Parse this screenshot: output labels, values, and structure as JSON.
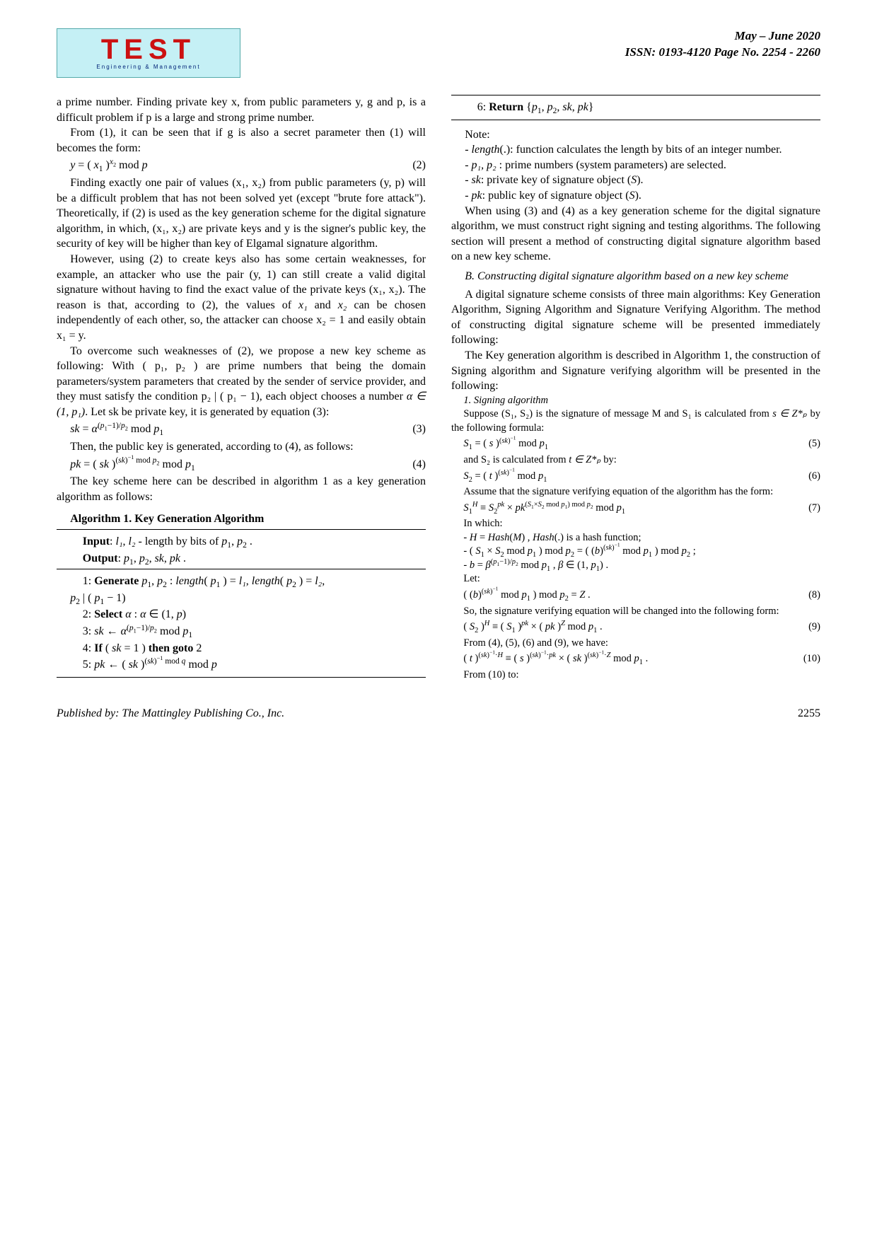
{
  "header": {
    "logo_main": "TEST",
    "logo_sub": "Engineering & Management",
    "date": "May – June 2020",
    "issn": "ISSN: 0193-4120 Page No. 2254 - 2260"
  },
  "left": {
    "p1": "a prime number. Finding private key x, from public parameters y, g and p, is a difficult problem if p is a large and strong prime number.",
    "p2": "From (1), it can be seen that if g is also a secret parameter then (1) will becomes the form:",
    "eq2": "y = ( x₁ )ˣ² mod p",
    "eq2num": "(2)",
    "p3a": "Finding exactly one pair of values ",
    "p3var": "(x₁, x₂)",
    "p3b": " from public parameters (y, p) will be a difficult problem that has not been solved yet (except \"brute fore attack\"). Theoretically, if (2) is used as the key generation scheme for the digital signature algorithm, in which, ",
    "p3c": " are private keys and y is the signer's public key, the security of key will be higher than key of Elgamal signature algorithm.",
    "p4a": "However, using (2) to create keys also has some certain weaknesses, for example, an attacker who use the pair (y, 1) can still create a valid digital signature without having to find the exact value of the private keys ",
    "p4var": "(x₁, x₂)",
    "p4b": ". The reason is that, according to (2), the values of ",
    "p4x1": "x₁",
    "p4and": " and ",
    "p4x2": "x₂",
    "p4c": " can be chosen independently of each other, so, the attacker can choose ",
    "p4eq1": "x₂ = 1",
    "p4d": " and easily obtain ",
    "p4eq2": "x₁ = y",
    "p4e": ".",
    "p5a": "To overcome such weaknesses of (2), we propose a new key scheme as following: With ",
    "p5var": "( p₁, p₂ )",
    "p5b": " are prime numbers that being the domain parameters/system parameters that created by the sender of service provider, and they must satisfy the condition ",
    "p5cond": "p₂ | ( p₁ − 1)",
    "p5c": ", each object chooses a number ",
    "p5alpha": "α ∈ (1, p₁)",
    "p5d": ". Let sk be private key, it is generated by equation (3):",
    "eq3": "sk = α^((p₁−1)/p₂) mod p₁",
    "eq3num": "(3)",
    "p6": "Then, the public key is generated, according to (4), as follows:",
    "eq4": "pk = ( sk )^((sk)⁻¹ mod p₂) mod p₁",
    "eq4num": "(4)",
    "p7": "The key scheme here can be described in algorithm 1 as a key generation algorithm as follows:",
    "algo_title": "Algorithm 1. Key Generation Algorithm",
    "algo_input": "Input: l₁, l₂ - length by bits of  p₁, p₂ .",
    "algo_output": "Output:  p₁, p₂, sk, pk .",
    "algo_s1": "1: Generate  p₁, p₂ : length( p₁ ) = l₁, length( p₂ ) = l₂,",
    "algo_s1b": "p₂ | ( p₁ − 1)",
    "algo_s2": "2: Select  α :  α ∈ (1, p)",
    "algo_s3": "3:  sk ← α^((p₁−1)/p₂) mod p₁",
    "algo_s4": "4: If ( sk = 1 ) then goto 2",
    "algo_s5": "5:  pk ← ( sk )^((sk)⁻¹ mod q) mod p"
  },
  "right": {
    "algo_s6": "6: Return  {p₁, p₂, sk, pk}",
    "note": "Note:",
    "n1": "- length(.): function calculates the length by bits of an integer number.",
    "n2a": "- ",
    "n2var": "p₁, p₂",
    "n2b": " : prime numbers (system parameters) are selected.",
    "n3": "- sk: private key of signature object (S).",
    "n4": "- pk: public key of signature object (S).",
    "p1": "When using (3) and (4) as a key generation scheme for the digital signature algorithm, we must construct right signing and testing algorithms. The following section will present a method of constructing digital signature algorithm based on a new key scheme.",
    "sectionB": "B.   Constructing digital signature algorithm based on a new key scheme",
    "p2": "A digital signature scheme consists of three main algorithms: Key Generation Algorithm, Signing Algorithm and Signature Verifying Algorithm. The method of constructing digital signature scheme will be presented immediately following:",
    "p3": "The Key generation algorithm is described in Algorithm 1, the construction of Signing algorithm and Signature verifying algorithm will be presented in the following:",
    "sub1": "1. Signing algorithm",
    "sp1a": "Suppose (S₁, S₂) is the signature of message M and S₁ is calculated from ",
    "sp1var": "s ∈ Z*ₚ",
    "sp1b": " by the following formula:",
    "eq5": "S₁ = ( s )^((sk)⁻¹) mod p₁",
    "eq5num": "(5)",
    "sp2a": "and S₂ is calculated from ",
    "sp2var": "t ∈ Z*ₚ",
    "sp2b": " by:",
    "eq6": "S₂ = ( t )^((sk)⁻¹) mod p₁",
    "eq6num": "(6)",
    "sp3": "Assume that the signature verifying equation of the algorithm has the form:",
    "eq7": "S₁ᴴ ≡ S₂ᵖᵏ × pk^((S₁×S₂ mod p₁) mod p₂) mod p₁",
    "eq7num": "(7)",
    "inwhich": "In which:",
    "w1": "-  H = Hash(M) , Hash(.) is a hash function;",
    "w2": "- ( S₁ × S₂ mod p₁ ) mod p₂ = ( (b)^((sk)⁻¹) mod p₁ ) mod p₂ ;",
    "w3": "-  b = β^((p₁−1)/p₂) mod p₁ , β ∈ (1, p₁) .",
    "let": "Let:",
    "eq8": "( (b)^((sk)⁻¹) mod p₁ ) mod p₂ = Z .",
    "eq8num": "(8)",
    "sp4": "So, the signature verifying equation will be changed into the following form:",
    "eq9": "( S₂ )ᴴ ≡ ( S₁ )ᵖᵏ × ( pk )ᶻ mod p₁ .",
    "eq9num": "(9)",
    "sp5": "From (4), (5), (6) and (9), we have:",
    "eq10": "( t )^((sk)⁻¹·H) ≡ ( s )^((sk)⁻¹·pk) × ( sk )^((sk)⁻¹·Z) mod p₁ .",
    "eq10num": "(10)",
    "sp6": "From (10) to:"
  },
  "footer": {
    "pub": "Published by: The Mattingley Publishing Co., Inc.",
    "page": "2255"
  }
}
